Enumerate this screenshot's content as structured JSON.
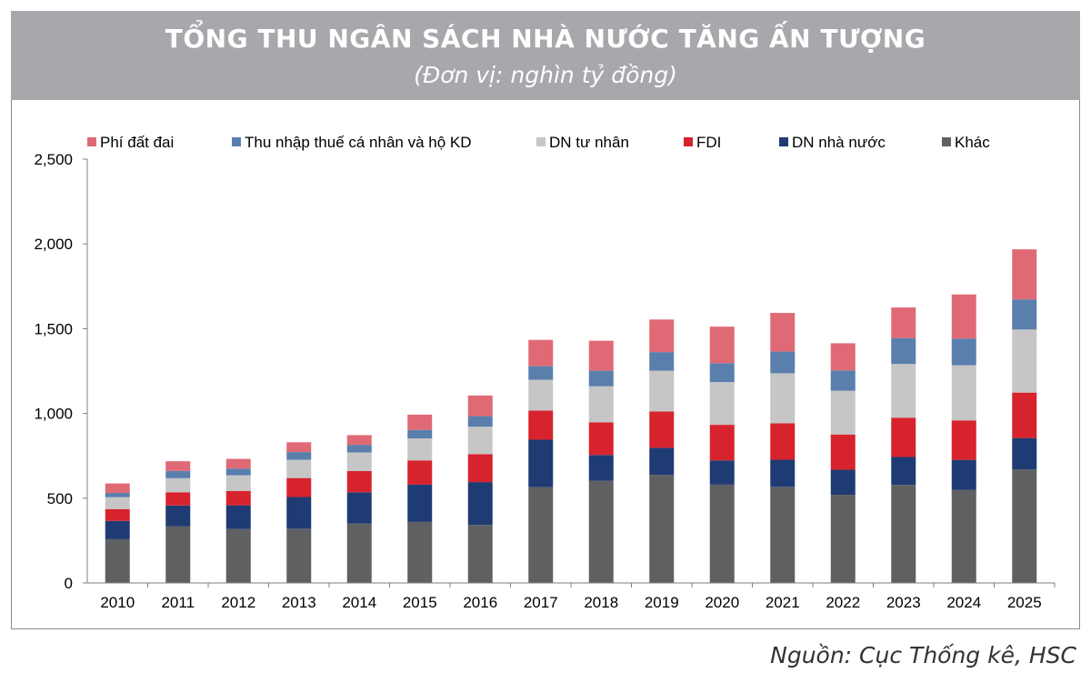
{
  "header": {
    "title": "TỔNG THU NGÂN SÁCH NHÀ NƯỚC TĂNG ẤN TƯỢNG",
    "subtitle": "(Đơn vị: nghìn tỷ đồng)"
  },
  "source": "Nguồn: Cục Thống kê, HSC",
  "chart_data": {
    "type": "bar",
    "stacked": true,
    "title": "TỔNG THU NGÂN SÁCH NHÀ NƯỚC TĂNG ẤN TƯỢNG",
    "subtitle": "(Đơn vị: nghìn tỷ đồng)",
    "xlabel": "",
    "ylabel": "",
    "ylim": [
      0,
      2500
    ],
    "yticks": [
      0,
      500,
      1000,
      1500,
      2000,
      2500
    ],
    "ytick_labels": [
      "0",
      "500",
      "1,000",
      "1,500",
      "2,000",
      "2,500"
    ],
    "grid": false,
    "legend_position": "top",
    "legend_order": [
      "Phí đất đai",
      "Thu nhập thuế cá nhân và hộ KD",
      "DN tư nhân",
      "FDI",
      "DN nhà nước",
      "Khác"
    ],
    "categories": [
      "2010",
      "2011",
      "2012",
      "2013",
      "2014",
      "2015",
      "2016",
      "2017",
      "2018",
      "2019",
      "2020",
      "2021",
      "2022",
      "2023",
      "2024",
      "2025"
    ],
    "series": [
      {
        "name": "Khác",
        "color": "#5f6062",
        "values": [
          258,
          335,
          318,
          320,
          350,
          360,
          342,
          565,
          603,
          637,
          580,
          567,
          520,
          578,
          548,
          670
        ]
      },
      {
        "name": "DN nhà nước",
        "color": "#1f3b73",
        "values": [
          108,
          122,
          140,
          187,
          185,
          220,
          253,
          280,
          152,
          160,
          143,
          160,
          148,
          165,
          178,
          185
        ]
      },
      {
        "name": "FDI",
        "color": "#d7232e",
        "values": [
          70,
          78,
          85,
          112,
          125,
          143,
          165,
          172,
          192,
          215,
          210,
          215,
          208,
          232,
          233,
          268
        ]
      },
      {
        "name": "DN tư nhân",
        "color": "#c6c6c6",
        "values": [
          70,
          83,
          92,
          108,
          110,
          130,
          162,
          182,
          213,
          240,
          252,
          295,
          258,
          317,
          325,
          372
        ]
      },
      {
        "name": "Thu nhập thuế cá nhân và hộ KD",
        "color": "#5a7fad",
        "values": [
          25,
          43,
          40,
          45,
          45,
          50,
          62,
          80,
          92,
          110,
          112,
          128,
          120,
          153,
          158,
          178
        ]
      },
      {
        "name": "Phí đất đai",
        "color": "#df6a76",
        "values": [
          56,
          57,
          57,
          58,
          57,
          90,
          122,
          155,
          177,
          192,
          215,
          228,
          160,
          180,
          260,
          295
        ]
      }
    ]
  }
}
